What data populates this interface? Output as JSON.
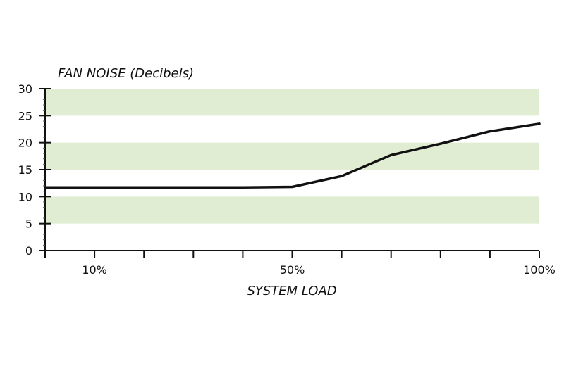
{
  "chart_data": {
    "type": "line",
    "ylabel": "FAN NOISE (Decibels)",
    "xlabel": "SYSTEM LOAD",
    "ylim": [
      0,
      30
    ],
    "xlim": [
      0,
      100
    ],
    "y_ticks": [
      0,
      5,
      10,
      15,
      20,
      25,
      30
    ],
    "x_ticks": [
      0,
      10,
      20,
      30,
      40,
      50,
      60,
      70,
      80,
      90,
      100
    ],
    "x_tick_labels": [
      {
        "value": 10,
        "label": "10%"
      },
      {
        "value": 50,
        "label": "50%"
      },
      {
        "value": 100,
        "label": "100%"
      }
    ],
    "bands": [
      [
        5,
        10
      ],
      [
        15,
        20
      ],
      [
        25,
        30
      ]
    ],
    "band_color": "#e1edd3",
    "line_color": "#111111",
    "series": [
      {
        "x": [
          0,
          10,
          20,
          30,
          40,
          50,
          60,
          70,
          80,
          90,
          100
        ],
        "values": [
          11.7,
          11.7,
          11.7,
          11.7,
          11.7,
          11.8,
          13.8,
          17.7,
          19.8,
          22.1,
          23.5
        ]
      }
    ]
  }
}
